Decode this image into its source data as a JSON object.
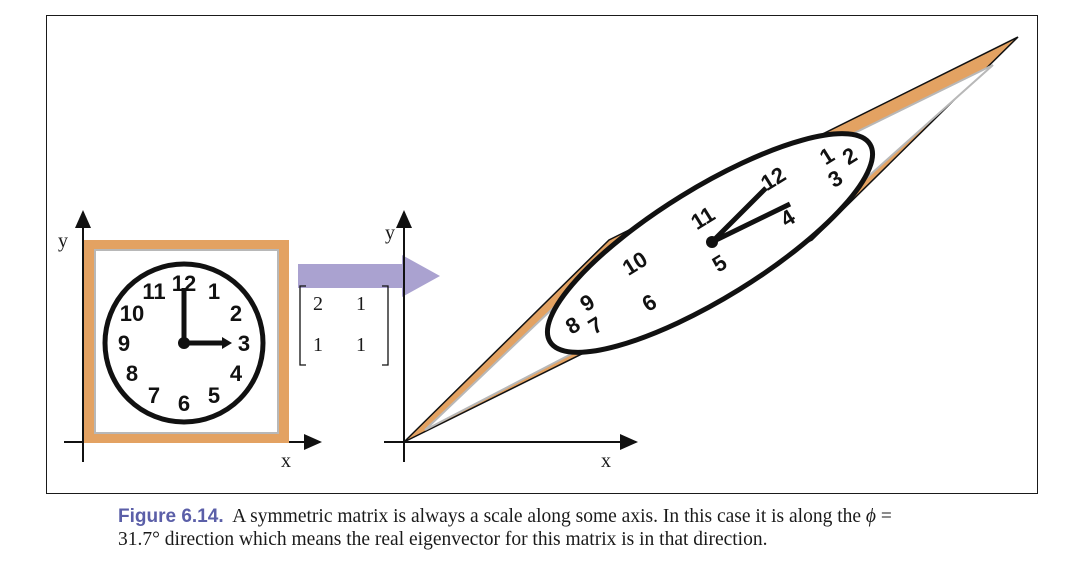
{
  "figure": {
    "left_axes": {
      "x_label": "x",
      "y_label": "y"
    },
    "right_axes": {
      "x_label": "x",
      "y_label": "y"
    },
    "matrix": {
      "r1c1": "2",
      "r1c2": "1",
      "r2c1": "1",
      "r2c2": "1"
    },
    "clock_numbers": [
      "12",
      "1",
      "2",
      "3",
      "4",
      "5",
      "6",
      "7",
      "8",
      "9",
      "10",
      "11"
    ],
    "colors": {
      "frame": "#e3a262",
      "arrow": "#aaa2d0",
      "caption_label": "#5b5fa8"
    }
  },
  "caption": {
    "label": "Figure 6.14.",
    "text_a": "A symmetric matrix is always a scale along some axis. In this case it is along the",
    "symbol": "ϕ",
    "text_b": "=",
    "text_c": "31.7° direction which means the real eigenvector for this matrix is in that direction."
  }
}
